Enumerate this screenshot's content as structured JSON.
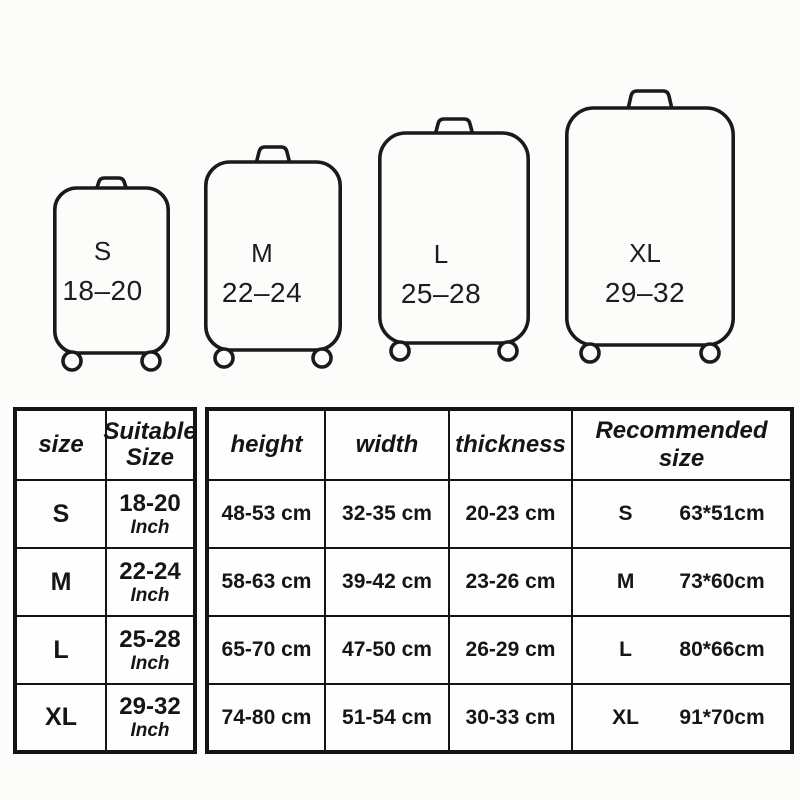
{
  "suitcases": [
    {
      "size_label": "S",
      "range_label": "18–20"
    },
    {
      "size_label": "M",
      "range_label": "22–24"
    },
    {
      "size_label": "L",
      "range_label": "25–28"
    },
    {
      "size_label": "XL",
      "range_label": "29–32"
    }
  ],
  "size_table": {
    "col_size_header": "size",
    "col_suitable_header": "Suitable Size",
    "rows": [
      {
        "size": "S",
        "range": "18-20",
        "unit": "Inch"
      },
      {
        "size": "M",
        "range": "22-24",
        "unit": "Inch"
      },
      {
        "size": "L",
        "range": "25-28",
        "unit": "Inch"
      },
      {
        "size": "XL",
        "range": "29-32",
        "unit": "Inch"
      }
    ]
  },
  "dimension_table": {
    "headers": {
      "height": "height",
      "width": "width",
      "thickness": "thickness",
      "recommended": "Recommended size"
    },
    "rows": [
      {
        "height": "48-53 cm",
        "width": "32-35 cm",
        "thickness": "20-23 cm",
        "size": "S",
        "cover": "63*51cm"
      },
      {
        "height": "58-63 cm",
        "width": "39-42 cm",
        "thickness": "23-26 cm",
        "size": "M",
        "cover": "73*60cm"
      },
      {
        "height": "65-70 cm",
        "width": "47-50 cm",
        "thickness": "26-29 cm",
        "size": "L",
        "cover": "80*66cm"
      },
      {
        "height": "74-80 cm",
        "width": "51-54 cm",
        "thickness": "30-33 cm",
        "size": "XL",
        "cover": "91*70cm"
      }
    ]
  },
  "line_color": "#1a1a1a"
}
